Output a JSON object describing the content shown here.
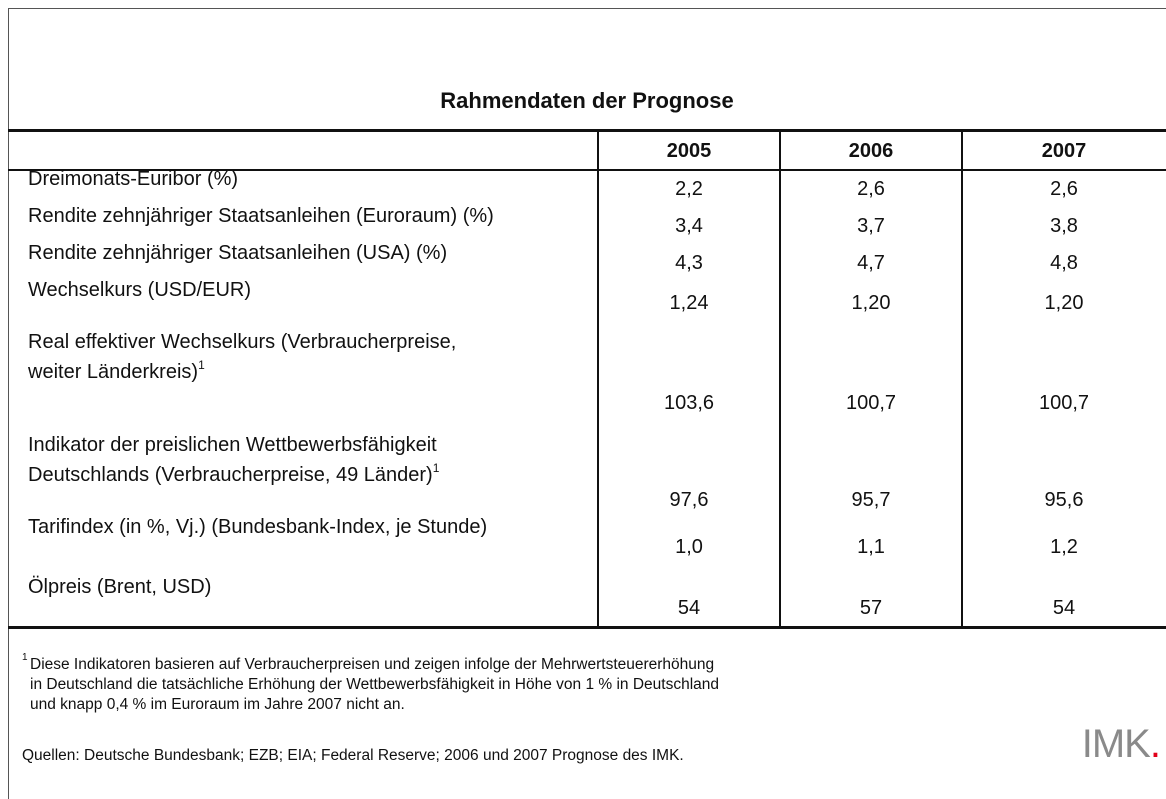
{
  "title": "Rahmendaten der Prognose",
  "table": {
    "columns": [
      "2005",
      "2006",
      "2007"
    ],
    "rows": [
      {
        "label": [
          "Dreimonats-Euribor (%)"
        ],
        "values": [
          "2,2",
          "2,6",
          "2,6"
        ]
      },
      {
        "label": [
          "Rendite zehnjähriger Staatsanleihen (Euroraum) (%)"
        ],
        "values": [
          "3,4",
          "3,7",
          "3,8"
        ]
      },
      {
        "label": [
          "Rendite zehnjähriger Staatsanleihen (USA) (%)"
        ],
        "values": [
          "4,3",
          "4,7",
          "4,8"
        ]
      },
      {
        "label": [
          "Wechselkurs (USD/EUR)"
        ],
        "values": [
          "1,24",
          "1,20",
          "1,20"
        ]
      },
      {
        "label": [
          "Real effektiver Wechselkurs (Verbraucherpreise,",
          "weiter Länderkreis)"
        ],
        "note": "1",
        "values": [
          "103,6",
          "100,7",
          "100,7"
        ]
      },
      {
        "label": [
          "Indikator der preislichen Wettbewerbsfähigkeit",
          "Deutschlands (Verbraucherpreise, 49 Länder)"
        ],
        "note": "1",
        "values": [
          "97,6",
          "95,7",
          "95,6"
        ]
      },
      {
        "label": [
          "Tarifindex (in %, Vj.) (Bundesbank-Index, je Stunde)"
        ],
        "values": [
          "1,0",
          "1,1",
          "1,2"
        ]
      },
      {
        "label": [
          "Ölpreis (Brent, USD)"
        ],
        "values": [
          "54",
          "57",
          "54"
        ]
      }
    ]
  },
  "footnote": {
    "mark": "1",
    "lines": [
      "Diese Indikatoren basieren auf Verbraucherpreisen und zeigen infolge der Mehrwertsteuererhöhung",
      "in Deutschland die tatsächliche Erhöhung der Wettbewerbsfähigkeit in Höhe von 1 % in Deutschland",
      "und knapp 0,4 % im Euroraum im Jahre 2007 nicht an."
    ]
  },
  "source": "Quellen: Deutsche Bundesbank; EZB; EIA; Federal Reserve; 2006 und 2007 Prognose des IMK.",
  "logo": {
    "text": "IMK",
    "dot": "."
  }
}
